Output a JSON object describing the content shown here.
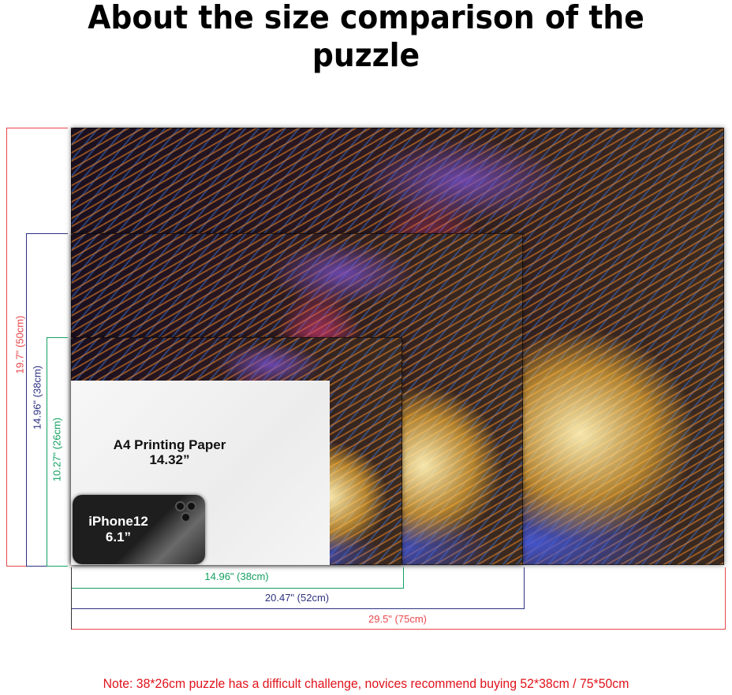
{
  "title": "About the size comparison of the puzzle",
  "a4": {
    "label": "A4 Printing Paper",
    "size": "14.32”"
  },
  "phone": {
    "label": "iPhone12",
    "size": "6.1”"
  },
  "heights": {
    "large": "19.7\" (50cm)",
    "medium": "14.96\" (38cm)",
    "small": "10.27\" (26cm)"
  },
  "widths": {
    "small": "14.96\" (38cm)",
    "medium": "20.47\" (52cm)",
    "large": "29.5\" (75cm)"
  },
  "note": "Note:  38*26cm puzzle has a difficult challenge, novices recommend buying 52*38cm / 75*50cm",
  "colors": {
    "red": "#e8474b",
    "blue": "#2e3280",
    "green": "#14a060",
    "note": "#e0141c"
  }
}
